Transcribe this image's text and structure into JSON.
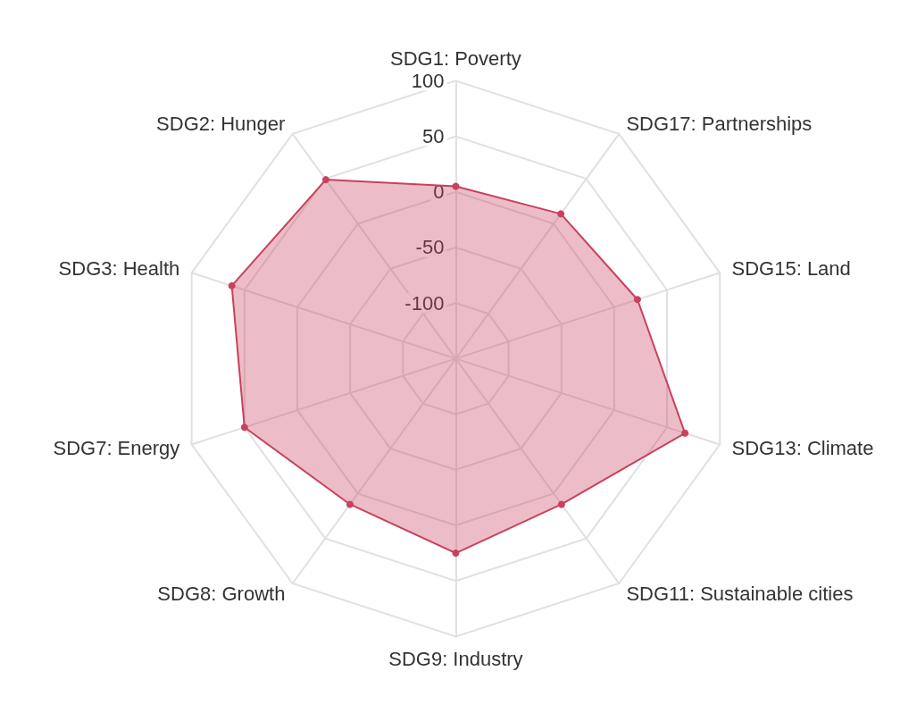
{
  "chart_data": {
    "type": "radar",
    "categories": [
      "SDG1: Poverty",
      "SDG17: Partnerships",
      "SDG15: Land",
      "SDG13: Climate",
      "SDG11: Sustainable cities",
      "SDG9: Industry",
      "SDG8: Growth",
      "SDG7: Energy",
      "SDG3: Health",
      "SDG2: Hunger"
    ],
    "series": [
      {
        "color": "#c9415d",
        "values": [
          5,
          11,
          22,
          67,
          12,
          25,
          12,
          50,
          62,
          49
        ]
      }
    ],
    "ylim": [
      -150,
      100
    ],
    "yticks": [
      -100,
      -50,
      0,
      50,
      100
    ],
    "grid": true,
    "marker": "circle"
  }
}
